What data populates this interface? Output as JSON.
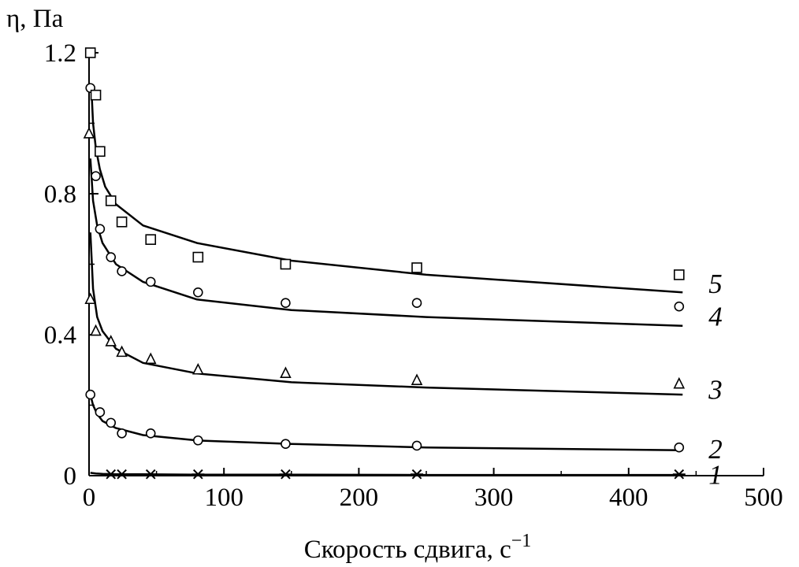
{
  "chart_data": {
    "type": "scatter",
    "title": "",
    "xlabel": "Скорость сдвига, с",
    "xlabel_exp": "−1",
    "ylabel": "η, Па",
    "xlim": [
      0,
      500
    ],
    "ylim": [
      0,
      1.2
    ],
    "x_ticks": [
      0,
      100,
      200,
      300,
      400,
      500
    ],
    "x_tick_labels": [
      "0",
      "100",
      "200",
      "300",
      "400",
      "500"
    ],
    "y_ticks": [
      0,
      0.4,
      0.8,
      1.2
    ],
    "y_tick_labels": [
      "0",
      "0.4",
      "0.8",
      "1.2"
    ],
    "grid": false,
    "legend": "none",
    "series": [
      {
        "name": "1",
        "marker": "asterisk",
        "x": [
          16.2,
          24.3,
          45.7,
          80.8,
          145.7,
          243.0,
          437.4
        ],
        "y": [
          0.004,
          0.004,
          0.004,
          0.004,
          0.004,
          0.004,
          0.004
        ],
        "fit_x": [
          1,
          5,
          10,
          20,
          40,
          80,
          150,
          250,
          440
        ],
        "fit_y": [
          0.008,
          0.006,
          0.005,
          0.004,
          0.004,
          0.003,
          0.003,
          0.002,
          0.002
        ]
      },
      {
        "name": "2",
        "marker": "circle",
        "x": [
          1.0,
          8.1,
          16.2,
          24.3,
          45.7,
          80.8,
          145.7,
          243.0,
          437.4
        ],
        "y": [
          0.23,
          0.18,
          0.15,
          0.12,
          0.12,
          0.1,
          0.09,
          0.085,
          0.08
        ],
        "fit_x": [
          1,
          3,
          6,
          10,
          20,
          40,
          80,
          150,
          250,
          440
        ],
        "fit_y": [
          0.23,
          0.2,
          0.175,
          0.155,
          0.135,
          0.115,
          0.1,
          0.09,
          0.08,
          0.072
        ]
      },
      {
        "name": "3",
        "marker": "triangle",
        "x": [
          1.0,
          5.0,
          16.2,
          24.3,
          45.7,
          80.8,
          145.7,
          243.0,
          437.4
        ],
        "y": [
          0.5,
          0.41,
          0.38,
          0.35,
          0.33,
          0.3,
          0.29,
          0.27,
          0.26
        ],
        "fit_x": [
          1,
          3,
          6,
          10,
          20,
          40,
          80,
          150,
          250,
          440
        ],
        "fit_y": [
          0.69,
          0.53,
          0.45,
          0.41,
          0.36,
          0.32,
          0.29,
          0.265,
          0.25,
          0.23
        ]
      },
      {
        "name": "4",
        "marker": "circle",
        "x": [
          1.0,
          5.0,
          8.1,
          16.2,
          24.3,
          45.7,
          80.8,
          145.7,
          243.0,
          437.4
        ],
        "y": [
          1.1,
          0.85,
          0.7,
          0.62,
          0.58,
          0.55,
          0.52,
          0.49,
          0.49,
          0.48
        ],
        "fit_x": [
          1,
          3,
          6,
          10,
          20,
          40,
          80,
          150,
          250,
          440
        ],
        "fit_y": [
          0.9,
          0.78,
          0.71,
          0.66,
          0.6,
          0.55,
          0.5,
          0.47,
          0.45,
          0.425
        ]
      },
      {
        "name": "5",
        "marker": "square",
        "x": [
          1.0,
          5.0,
          8.1,
          16.2,
          24.3,
          45.7,
          80.8,
          145.7,
          243.0,
          437.4
        ],
        "y": [
          1.2,
          1.08,
          0.92,
          0.78,
          0.72,
          0.67,
          0.62,
          0.6,
          0.59,
          0.57
        ],
        "fit_x": [
          2,
          3,
          5,
          8,
          12,
          20,
          40,
          80,
          150,
          250,
          440
        ],
        "fit_y": [
          1.08,
          1.0,
          0.93,
          0.87,
          0.82,
          0.77,
          0.71,
          0.66,
          0.61,
          0.57,
          0.52
        ]
      }
    ],
    "outlier_markers": [
      {
        "series": "3",
        "marker": "triangle",
        "x": 0,
        "y": 0.97
      }
    ]
  }
}
